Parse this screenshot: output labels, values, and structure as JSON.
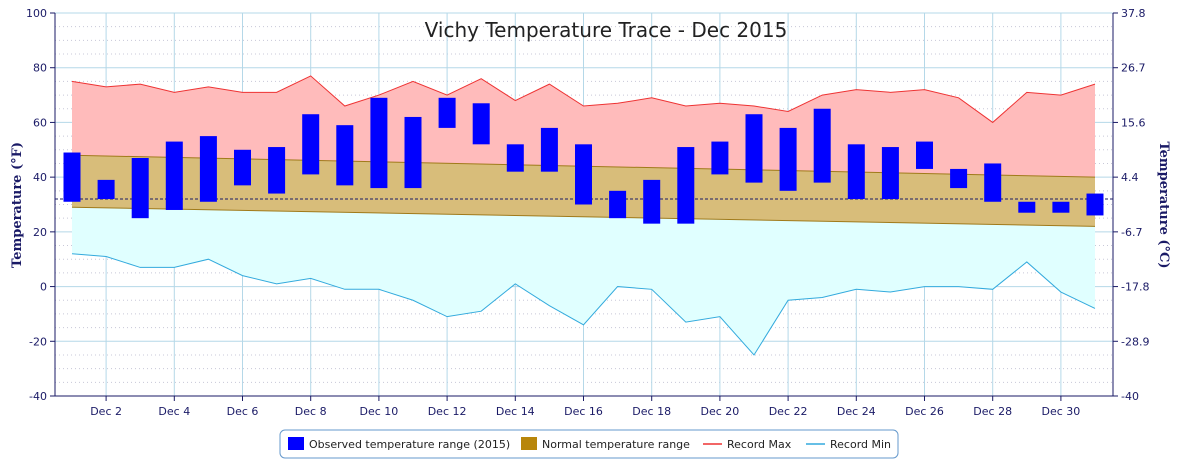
{
  "chart_data": {
    "type": "bar",
    "title": "Vichy Temperature Trace - Dec 2015",
    "ylabel": "Temperature (°F)",
    "ylabel_right": "Temperature (°C)",
    "ylim": [
      -40,
      100
    ],
    "yticks": [
      -40,
      -20,
      0,
      20,
      40,
      60,
      80,
      100
    ],
    "yticks_right": [
      "37.8",
      "26.7",
      "15.6",
      "4.4",
      "-6.7",
      "-17.8",
      "-28.9",
      "-40"
    ],
    "day_range": [
      1,
      31
    ],
    "x_tick_labels": [
      "Dec 2",
      "Dec 4",
      "Dec 6",
      "Dec 8",
      "Dec 10",
      "Dec 12",
      "Dec 14",
      "Dec 16",
      "Dec 18",
      "Dec 20",
      "Dec 22",
      "Dec 24",
      "Dec 26",
      "Dec 28",
      "Dec 30"
    ],
    "freezing_line": 32,
    "grid": true,
    "legend_position": "bottom-center",
    "series": [
      {
        "name": "Observed temperature range (2015)",
        "kind": "range_bar",
        "color": "#0000ff",
        "low": [
          31,
          32,
          25,
          28,
          31,
          37,
          34,
          41,
          37,
          36,
          36,
          58,
          52,
          42,
          42,
          30,
          25,
          23,
          23,
          41,
          38,
          35,
          38,
          32,
          32,
          43,
          36,
          31,
          27,
          27,
          26
        ],
        "high": [
          49,
          39,
          47,
          53,
          55,
          50,
          51,
          63,
          59,
          69,
          62,
          69,
          67,
          52,
          58,
          52,
          35,
          39,
          51,
          53,
          63,
          58,
          65,
          52,
          51,
          53,
          43,
          45,
          31,
          31,
          34
        ]
      },
      {
        "name": "Normal temperature range",
        "kind": "band",
        "color": "#b8860b",
        "low_start": 29,
        "low_end": 22,
        "high_start": 48,
        "high_end": 40
      },
      {
        "name": "Record Max",
        "kind": "line",
        "color": "#ee3333",
        "values": [
          75,
          73,
          74,
          71,
          73,
          71,
          71,
          77,
          66,
          70,
          75,
          70,
          76,
          68,
          74,
          66,
          67,
          69,
          66,
          67,
          66,
          64,
          70,
          72,
          71,
          72,
          69,
          60,
          71,
          70,
          74
        ]
      },
      {
        "name": "Record Min",
        "kind": "line",
        "color": "#33aadd",
        "values": [
          12,
          11,
          7,
          7,
          10,
          4,
          1,
          3,
          -1,
          -1,
          -5,
          -11,
          -9,
          1,
          -7,
          -14,
          0,
          -1,
          -13,
          -11,
          -25,
          -5,
          -4,
          -1,
          -2,
          0,
          0,
          -1,
          9,
          -2,
          -8
        ]
      }
    ]
  }
}
